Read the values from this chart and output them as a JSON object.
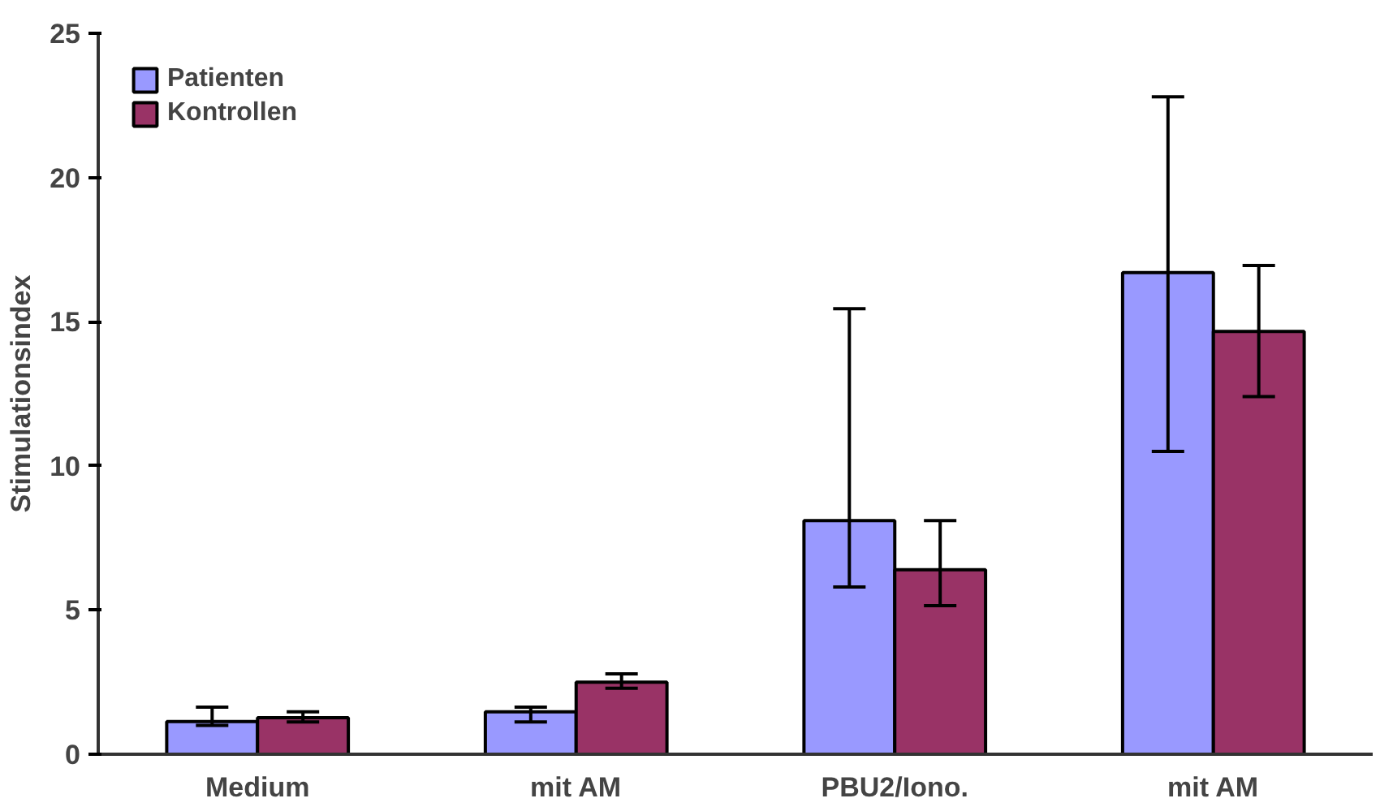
{
  "chart_data": {
    "type": "bar",
    "ylabel": "Stimulationsindex",
    "categories": [
      "Medium",
      "mit AM",
      "PBU2/Iono.",
      "mit AM"
    ],
    "series": [
      {
        "name": "Patienten",
        "color": "#9999ff",
        "values": [
          1.13,
          1.47,
          8.1,
          16.7
        ],
        "errors": [
          [
            1.0,
            1.63
          ],
          [
            1.12,
            1.63
          ],
          [
            5.8,
            15.45
          ],
          [
            10.5,
            22.8
          ]
        ]
      },
      {
        "name": "Kontrollen",
        "color": "#993366",
        "values": [
          1.27,
          2.5,
          6.4,
          14.66
        ],
        "errors": [
          [
            1.12,
            1.47
          ],
          [
            2.29,
            2.79
          ],
          [
            5.15,
            8.1
          ],
          [
            12.4,
            16.95
          ]
        ]
      }
    ],
    "ylim": [
      0,
      25
    ],
    "yticks": [
      0,
      5,
      10,
      15,
      20,
      25
    ],
    "grid": false,
    "legend": "top left"
  }
}
